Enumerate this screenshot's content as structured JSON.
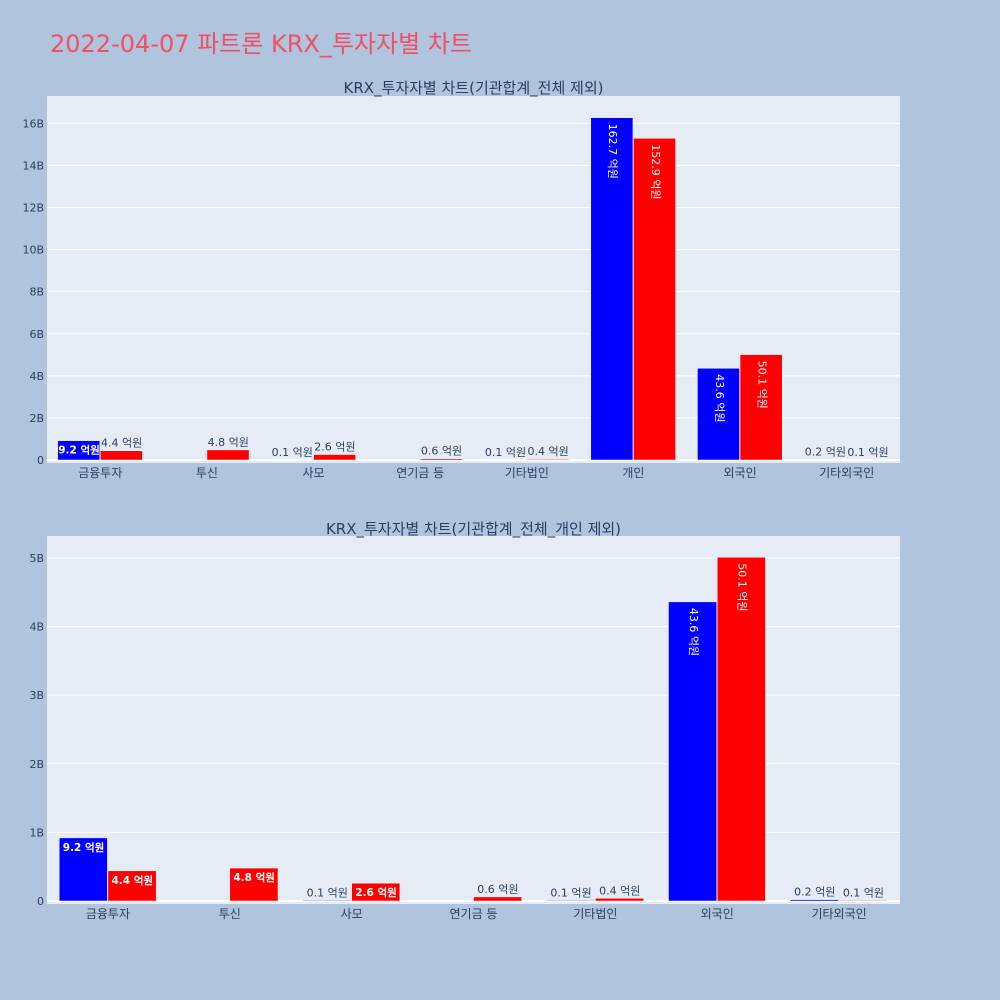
{
  "page_title": "2022-04-07 파트론 KRX_투자자별 차트",
  "colors": {
    "background": "#b0c4de",
    "plot_bg": "#e5ecf6",
    "buy": "#0000ff",
    "sell": "#ff0000",
    "title": "#ef5064",
    "text": "#2a3f5f"
  },
  "chart_data": [
    {
      "type": "bar",
      "title": "KRX_투자자별 차트(기관합계_전체 제외)",
      "categories": [
        "금융투자",
        "투신",
        "사모",
        "연기금 등",
        "기타법인",
        "개인",
        "외국인",
        "기타외국인"
      ],
      "ylim": [
        0,
        17300000000
      ],
      "yticks": [
        0,
        2000000000,
        4000000000,
        6000000000,
        8000000000,
        10000000000,
        12000000000,
        14000000000,
        16000000000
      ],
      "ytick_labels": [
        "0",
        "2B",
        "4B",
        "6B",
        "8B",
        "10B",
        "12B",
        "14B",
        "16B"
      ],
      "grid": true,
      "series": [
        {
          "color": "#0000ff",
          "values": [
            920000000,
            0,
            10000000,
            0,
            10000000,
            16270000000,
            4360000000,
            20000000
          ],
          "labels": [
            "9.2 억원",
            "",
            "0.1 억원",
            "",
            "0.1 억원",
            "162.7 억원",
            "43.6 억원",
            "0.2 억원"
          ]
        },
        {
          "color": "#ff0000",
          "values": [
            440000000,
            480000000,
            260000000,
            60000000,
            40000000,
            15290000000,
            5010000000,
            10000000
          ],
          "labels": [
            "4.4 억원",
            "4.8 억원",
            "2.6 억원",
            "0.6 억원",
            "0.4 억원",
            "152.9 억원",
            "50.1 억원",
            "0.1 억원"
          ]
        }
      ]
    },
    {
      "type": "bar",
      "title": "KRX_투자자별 차트(기관합계_전체_개인 제외)",
      "categories": [
        "금융투자",
        "투신",
        "사모",
        "연기금 등",
        "기타법인",
        "외국인",
        "기타외국인"
      ],
      "ylim": [
        0,
        5320000000
      ],
      "yticks": [
        0,
        1000000000,
        2000000000,
        3000000000,
        4000000000,
        5000000000
      ],
      "ytick_labels": [
        "0",
        "1B",
        "2B",
        "3B",
        "4B",
        "5B"
      ],
      "grid": true,
      "series": [
        {
          "color": "#0000ff",
          "values": [
            920000000,
            0,
            10000000,
            0,
            10000000,
            4360000000,
            20000000
          ],
          "labels": [
            "9.2 억원",
            "",
            "0.1 억원",
            "",
            "0.1 억원",
            "43.6 억원",
            "0.2 억원"
          ]
        },
        {
          "color": "#ff0000",
          "values": [
            440000000,
            480000000,
            260000000,
            60000000,
            40000000,
            5010000000,
            10000000
          ],
          "labels": [
            "4.4 억원",
            "4.8 억원",
            "2.6 억원",
            "0.6 억원",
            "0.4 억원",
            "50.1 억원",
            "0.1 억원"
          ]
        }
      ]
    }
  ]
}
